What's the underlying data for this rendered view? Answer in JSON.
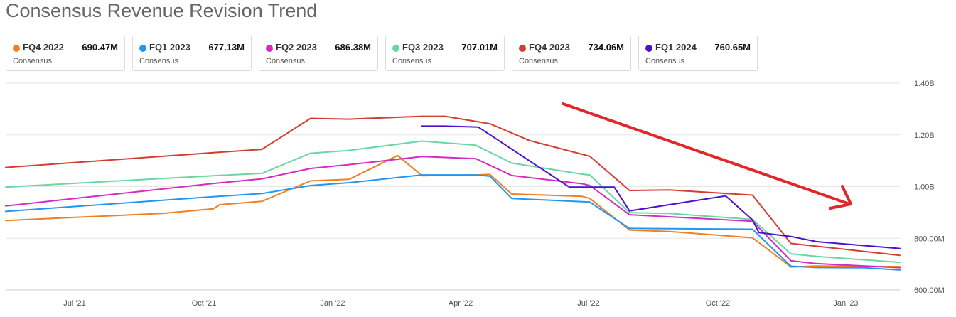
{
  "chart_data": {
    "type": "line",
    "title": "Consensus Revenue Revision Trend",
    "x_ticks": [
      "Jul '21",
      "Oct '21",
      "Jan '22",
      "Apr '22",
      "Jul '22",
      "Oct '22",
      "Jan '23"
    ],
    "y_ticks": [
      "1.40B",
      "1.20B",
      "1.00B",
      "800.00M",
      "600.00M"
    ],
    "ylim": [
      600,
      1400
    ],
    "y_unit": "M",
    "grid": true,
    "legend_position": "top",
    "series": [
      {
        "name": "FQ4 2022",
        "sub": "Consensus",
        "value_label": "690.47M",
        "color": "#f07f22",
        "points": [
          [
            "2021-04-01",
            869
          ],
          [
            "2021-08-01",
            896
          ],
          [
            "2021-09-10",
            914
          ],
          [
            "2021-09-15",
            930
          ],
          [
            "2021-10-18",
            943
          ],
          [
            "2021-11-25",
            1022
          ],
          [
            "2021-12-25",
            1028
          ],
          [
            "2022-02-01",
            1120
          ],
          [
            "2022-02-20",
            1042
          ],
          [
            "2022-04-03",
            1045
          ],
          [
            "2022-04-14",
            1047
          ],
          [
            "2022-05-01",
            971
          ],
          [
            "2022-06-25",
            962
          ],
          [
            "2022-07-01",
            954
          ],
          [
            "2022-08-01",
            832
          ],
          [
            "2022-09-01",
            826
          ],
          [
            "2022-11-05",
            802
          ],
          [
            "2022-12-05",
            689
          ],
          [
            "2022-12-25",
            693
          ],
          [
            "2023-02-28",
            690.47
          ]
        ]
      },
      {
        "name": "FQ1 2023",
        "sub": "Consensus",
        "value_label": "677.13M",
        "color": "#2196f3",
        "points": [
          [
            "2021-04-01",
            904
          ],
          [
            "2021-09-10",
            961
          ],
          [
            "2021-10-18",
            973
          ],
          [
            "2021-11-25",
            1004
          ],
          [
            "2021-12-25",
            1015
          ],
          [
            "2022-02-20",
            1045
          ],
          [
            "2022-04-03",
            1045
          ],
          [
            "2022-04-14",
            1040
          ],
          [
            "2022-05-01",
            954
          ],
          [
            "2022-07-01",
            940
          ],
          [
            "2022-08-01",
            838
          ],
          [
            "2022-11-05",
            835
          ],
          [
            "2022-12-05",
            692
          ],
          [
            "2022-12-25",
            687
          ],
          [
            "2023-02-01",
            686
          ],
          [
            "2023-02-28",
            677.13
          ]
        ]
      },
      {
        "name": "FQ2 2023",
        "sub": "Consensus",
        "value_label": "686.38M",
        "color": "#d42bc2",
        "points": [
          [
            "2021-04-01",
            925
          ],
          [
            "2021-09-10",
            1012
          ],
          [
            "2021-10-18",
            1030
          ],
          [
            "2021-11-25",
            1070
          ],
          [
            "2021-12-25",
            1085
          ],
          [
            "2022-02-20",
            1116
          ],
          [
            "2022-04-03",
            1108
          ],
          [
            "2022-05-01",
            1043
          ],
          [
            "2022-06-25",
            1011
          ],
          [
            "2022-07-01",
            1004
          ],
          [
            "2022-08-01",
            891
          ],
          [
            "2022-11-05",
            866
          ],
          [
            "2022-12-05",
            713
          ],
          [
            "2022-12-25",
            702
          ],
          [
            "2023-02-28",
            686.38
          ]
        ]
      },
      {
        "name": "FQ3 2023",
        "sub": "Consensus",
        "value_label": "707.01M",
        "color": "#67d8a2",
        "points": [
          [
            "2021-04-01",
            998
          ],
          [
            "2021-09-10",
            1042
          ],
          [
            "2021-10-18",
            1051
          ],
          [
            "2021-11-25",
            1129
          ],
          [
            "2021-12-25",
            1140
          ],
          [
            "2022-02-20",
            1176
          ],
          [
            "2022-04-03",
            1160
          ],
          [
            "2022-05-01",
            1091
          ],
          [
            "2022-06-25",
            1048
          ],
          [
            "2022-07-01",
            1045
          ],
          [
            "2022-08-01",
            899
          ],
          [
            "2022-09-01",
            896
          ],
          [
            "2022-11-05",
            873
          ],
          [
            "2022-12-05",
            740
          ],
          [
            "2022-12-25",
            730
          ],
          [
            "2023-02-28",
            707.01
          ]
        ]
      },
      {
        "name": "FQ4 2023",
        "sub": "Consensus",
        "value_label": "734.06M",
        "color": "#d33d33",
        "points": [
          [
            "2021-04-01",
            1074
          ],
          [
            "2021-09-10",
            1131
          ],
          [
            "2021-10-18",
            1144
          ],
          [
            "2021-11-25",
            1264
          ],
          [
            "2021-12-25",
            1261
          ],
          [
            "2022-02-20",
            1272
          ],
          [
            "2022-03-10",
            1272
          ],
          [
            "2022-04-14",
            1243
          ],
          [
            "2022-05-15",
            1178
          ],
          [
            "2022-07-01",
            1117
          ],
          [
            "2022-08-01",
            985
          ],
          [
            "2022-09-01",
            987
          ],
          [
            "2022-11-05",
            967
          ],
          [
            "2022-12-05",
            780
          ],
          [
            "2023-02-28",
            734.06
          ]
        ]
      },
      {
        "name": "FQ1 2024",
        "sub": "Consensus",
        "value_label": "760.65M",
        "color": "#4b11cf",
        "points": [
          [
            "2022-02-20",
            1234
          ],
          [
            "2022-03-10",
            1234
          ],
          [
            "2022-04-05",
            1230
          ],
          [
            "2022-06-15",
            998
          ],
          [
            "2022-07-20",
            998
          ],
          [
            "2022-08-01",
            906
          ],
          [
            "2022-10-15",
            964
          ],
          [
            "2022-11-05",
            871
          ],
          [
            "2022-11-10",
            822
          ],
          [
            "2022-12-05",
            807
          ],
          [
            "2022-12-25",
            787
          ],
          [
            "2023-02-28",
            760.65
          ]
        ]
      }
    ],
    "annotation": {
      "type": "arrow",
      "color": "#e02828"
    }
  }
}
